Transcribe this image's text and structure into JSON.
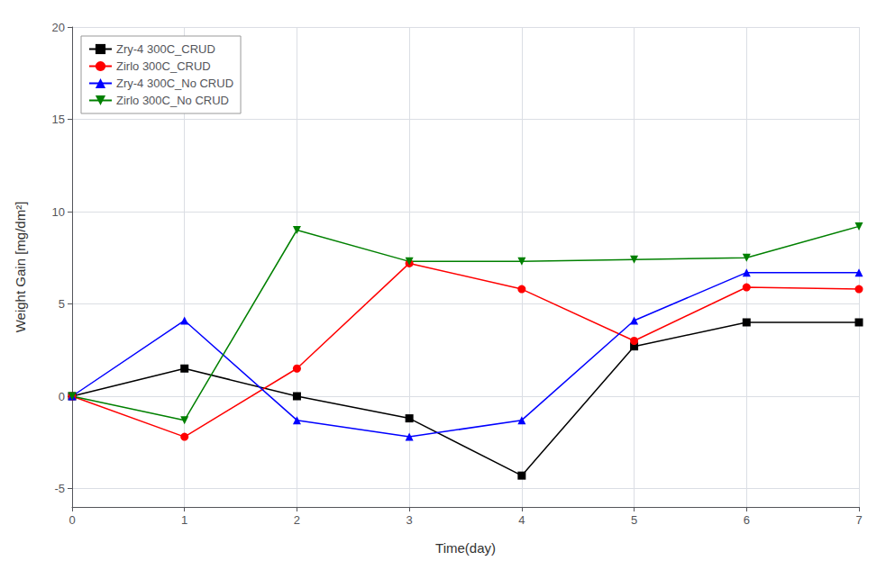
{
  "chart_data": {
    "type": "line",
    "xlabel": "Time(day)",
    "ylabel": "Weight Gain [mg/dm²]",
    "x": [
      0,
      1,
      2,
      3,
      4,
      5,
      6,
      7
    ],
    "series": [
      {
        "name": "Zry-4 300C_CRUD",
        "color": "#000000",
        "marker": "square",
        "values": [
          0.0,
          1.5,
          0.0,
          -1.2,
          -4.3,
          2.7,
          4.0,
          4.0
        ]
      },
      {
        "name": "Zirlo 300C_CRUD",
        "color": "#ff0000",
        "marker": "circle",
        "values": [
          0.0,
          -2.2,
          1.5,
          7.2,
          5.8,
          3.0,
          5.9,
          5.8
        ]
      },
      {
        "name": "Zry-4 300C_No CRUD",
        "color": "#0000ff",
        "marker": "triangle_up",
        "values": [
          0.0,
          4.1,
          -1.3,
          -2.2,
          -1.3,
          4.1,
          6.7,
          6.7
        ]
      },
      {
        "name": "Zirlo 300C_No CRUD",
        "color": "#008000",
        "marker": "triangle_down",
        "values": [
          0.0,
          -1.3,
          9.0,
          7.3,
          7.3,
          7.4,
          7.5,
          9.2
        ]
      }
    ],
    "xlim": [
      0,
      7
    ],
    "ylim": [
      -6,
      20
    ],
    "xticks": [
      0,
      1,
      2,
      3,
      4,
      5,
      6,
      7
    ],
    "yticks": [
      -5,
      0,
      5,
      10,
      15,
      20
    ],
    "grid": true,
    "legend": "upper left"
  }
}
